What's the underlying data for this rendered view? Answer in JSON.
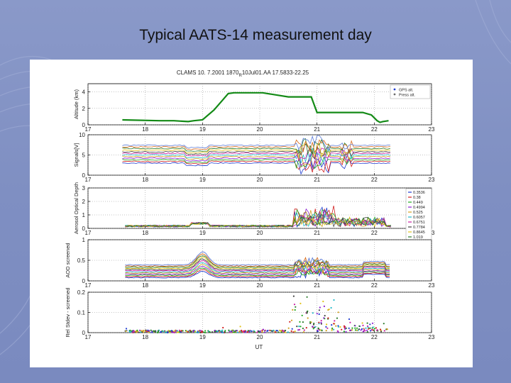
{
  "slide": {
    "title": "Typical AATS-14 measurement day"
  },
  "colors": {
    "background": "#8292c4",
    "altitude_line": "#138a16",
    "panel_border": "#000000"
  },
  "chart_data": {
    "type": "line",
    "title": "CLAMS 10. 7.2001 1870",
    "title_sub": "R",
    "title_rest": "10Jul01.AA 17.5833-22.25",
    "xlabel": "UT",
    "xlim": [
      17,
      23
    ],
    "x_ticks": [
      "17",
      "18",
      "19",
      "20",
      "21",
      "22",
      "23"
    ],
    "panels": [
      {
        "name": "altitude",
        "ylabel": "Altitude (km)",
        "ylim": [
          0,
          5
        ],
        "y_ticks": [
          "0",
          "2",
          "4"
        ],
        "legend": [
          "GPS alt.",
          "Press alt."
        ],
        "series": [
          {
            "name": "GPS alt.",
            "color": "#138a16",
            "x": [
              17.6,
              18.25,
              18.5,
              18.75,
              18.85,
              19.0,
              19.2,
              19.35,
              19.45,
              19.55,
              19.7,
              20.05,
              20.5,
              20.6,
              20.9,
              21.0,
              21.7,
              21.8,
              21.95,
              22.05,
              22.1,
              22.15,
              22.25
            ],
            "y": [
              0.6,
              0.5,
              0.5,
              0.4,
              0.5,
              0.6,
              1.8,
              3.0,
              3.8,
              3.9,
              3.9,
              3.9,
              3.4,
              3.4,
              3.4,
              1.5,
              1.5,
              1.5,
              1.2,
              0.5,
              0.3,
              0.4,
              0.5
            ]
          }
        ]
      },
      {
        "name": "signals",
        "ylabel": "Signals[V]",
        "ylim": [
          0,
          10
        ],
        "y_ticks": [
          "0",
          "5",
          "10"
        ]
      },
      {
        "name": "aod",
        "ylabel": "Aerosol Optical Depth",
        "ylim": [
          0,
          3
        ],
        "y_ticks": [
          "0",
          "1",
          "2",
          "3"
        ],
        "legend": [
          "0.3536",
          "0.38",
          "0.449",
          "0.4994",
          "0.525",
          "0.6057",
          "0.6751",
          "0.7784",
          "0.8645",
          "1.019"
        ]
      },
      {
        "name": "aod-screened",
        "ylabel": "AOD screened",
        "ylim": [
          0,
          1
        ],
        "y_ticks": [
          "0",
          "0.5",
          "1"
        ]
      },
      {
        "name": "rel-stdev",
        "ylabel": "Rel Stdev - screened",
        "ylim": [
          0,
          0.2
        ],
        "y_ticks": [
          "0",
          "0.1",
          "0.2"
        ]
      }
    ]
  }
}
